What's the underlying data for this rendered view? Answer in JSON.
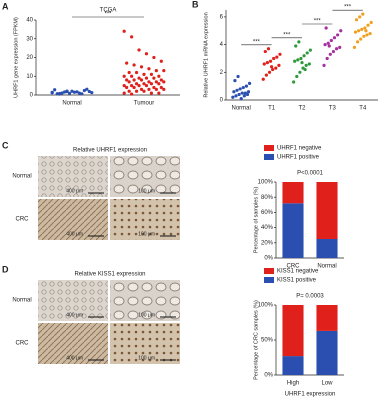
{
  "figure": {
    "panel_labels": [
      "A",
      "B",
      "C",
      "D"
    ],
    "ihc": [
      {
        "title": "Relative UHRF1 expression",
        "rows": [
          "Normal",
          "CRC"
        ],
        "scales": [
          "400 μm",
          "100 μm",
          "400 μm",
          "100 μm"
        ]
      },
      {
        "title": "Relative KISS1 expression",
        "rows": [
          "Normal",
          "CRC"
        ],
        "scales": [
          "400 μm",
          "100 μm",
          "400 μm",
          "100 μm"
        ]
      }
    ]
  },
  "chart_data": [
    {
      "type": "strip",
      "title": "TCGA",
      "y_label": "UHRF1 gene expression (FPKM)",
      "categories": [
        "Normal",
        "Tumour"
      ],
      "annotations": [
        "***"
      ],
      "series": [
        {
          "color": "#2a4fb0",
          "values": [
            1.2,
            0.8,
            2.1,
            1.5,
            0.6,
            1.9,
            2.8,
            1.1,
            0.9,
            1.7,
            2.4,
            1.3,
            0.7,
            1.6,
            2.0,
            1.0,
            3.1,
            1.4,
            0.5,
            1.8
          ]
        },
        {
          "color": "#e0201b",
          "values": [
            34,
            31,
            24,
            22,
            20,
            18,
            17,
            16,
            15,
            14,
            13,
            13,
            12,
            12,
            11,
            11,
            10,
            10,
            10,
            9,
            9,
            9,
            8,
            8,
            8,
            8,
            7,
            7,
            7,
            7,
            6,
            6,
            6,
            6,
            5,
            5,
            5,
            5,
            4,
            4,
            4,
            4,
            3,
            3,
            3,
            3,
            2,
            2,
            2,
            1,
            1,
            1,
            0.5
          ]
        }
      ],
      "ylim": [
        0,
        40
      ],
      "yticks": [
        0,
        10,
        20,
        30,
        40
      ]
    },
    {
      "type": "strip",
      "y_label": "Relative UHRF1 mRNA expression",
      "categories": [
        "Normal",
        "T1",
        "T2",
        "T3",
        "T4"
      ],
      "annotations": [
        "***",
        "***",
        "***",
        "***"
      ],
      "series": [
        {
          "color": "#2a4fb0",
          "values": [
            0.2,
            0.3,
            0.4,
            0.5,
            0.5,
            0.6,
            0.6,
            0.7,
            0.8,
            0.9,
            1.0,
            1.2,
            1.4,
            1.7,
            0.1,
            0.3,
            0.4
          ]
        },
        {
          "color": "#e0201b",
          "values": [
            1.5,
            1.8,
            2.0,
            2.2,
            2.3,
            2.5,
            2.6,
            2.7,
            2.8,
            3.0,
            3.1,
            3.3,
            3.5,
            3.7,
            2.4
          ]
        },
        {
          "color": "#2e9a3a",
          "values": [
            1.3,
            1.7,
            2.0,
            2.3,
            2.5,
            2.6,
            2.8,
            2.9,
            3.0,
            3.2,
            3.4,
            3.6,
            3.9,
            4.2,
            2.7,
            2.2
          ]
        },
        {
          "color": "#a5309e",
          "values": [
            2.5,
            3.0,
            3.3,
            3.5,
            3.7,
            3.8,
            4.0,
            4.1,
            4.3,
            4.5,
            4.7,
            5.0,
            5.2,
            3.9
          ]
        },
        {
          "color": "#f0a020",
          "values": [
            3.8,
            4.2,
            4.4,
            4.6,
            4.7,
            4.8,
            4.9,
            5.0,
            5.1,
            5.2,
            5.4,
            5.6,
            5.8,
            6.0,
            6.2,
            5.0
          ]
        }
      ],
      "ylim": [
        0,
        6.5
      ],
      "yticks": [
        0,
        2,
        4,
        6
      ]
    },
    {
      "type": "stacked_bar",
      "y_label": "Percentage of samples (%)",
      "annotations": [
        "P<0.0001"
      ],
      "categories": [
        "CRC",
        "Normal"
      ],
      "series": [
        {
          "name": "UHRF1 positive",
          "color": "#2a4fb0",
          "values": [
            72,
            25
          ]
        },
        {
          "name": "UHRF1 negative",
          "color": "#e0201b",
          "values": [
            28,
            75
          ]
        }
      ],
      "ylim": [
        0,
        100
      ],
      "yticks": [
        {
          "value": 0,
          "label": "0%"
        },
        {
          "value": 20,
          "label": "20%"
        },
        {
          "value": 40,
          "label": "40%"
        },
        {
          "value": 60,
          "label": "60%"
        },
        {
          "value": 80,
          "label": "80%"
        },
        {
          "value": 100,
          "label": "100%"
        }
      ]
    },
    {
      "type": "stacked_bar",
      "y_label": "Percentage of CRC samples (%)",
      "x_label": "UHRF1 expression",
      "annotations": [
        "P= 0.0003"
      ],
      "categories": [
        "High",
        "Low"
      ],
      "series": [
        {
          "name": "KISS1 positive",
          "color": "#2a4fb0",
          "values": [
            27,
            63
          ]
        },
        {
          "name": "KISS1 negative",
          "color": "#e0201b",
          "values": [
            73,
            37
          ]
        }
      ],
      "ylim": [
        0,
        100
      ],
      "yticks": [
        {
          "value": 0,
          "label": "0%"
        },
        {
          "value": 50,
          "label": "50%"
        },
        {
          "value": 100,
          "label": "100%"
        }
      ]
    }
  ]
}
